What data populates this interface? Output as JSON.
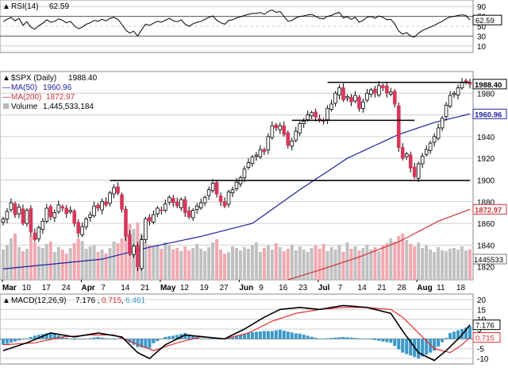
{
  "chart_data": {
    "type": "candlestick",
    "symbol_label": "$SPX (Daily)",
    "last_close": 1988.4,
    "last_close_label": "1988.40",
    "x_tick_labels": [
      "Mar",
      "10",
      "17",
      "24",
      "Apr",
      "7",
      "14",
      "21",
      "May",
      "12",
      "19",
      "27",
      "Jun",
      "9",
      "16",
      "23",
      "Jul",
      "7",
      "14",
      "21",
      "28",
      "Aug",
      "11",
      "18"
    ],
    "x_month_labels": [
      "Mar",
      "Apr",
      "May",
      "Jun",
      "Jul",
      "Aug"
    ],
    "price": {
      "ylim": [
        1808,
        2000
      ],
      "yticks": [
        1820,
        1840,
        1860,
        1880,
        1900,
        1920,
        1940,
        1960,
        1980
      ],
      "horizontal_lines": [
        {
          "value": 1899.5,
          "from_index": 27,
          "to_index": 118
        },
        {
          "value": 1955.0,
          "from_index": 73,
          "to_index": 104
        },
        {
          "value": 1990.0,
          "from_index": 82,
          "to_index": 118
        }
      ],
      "closes": [
        1864,
        1871,
        1879,
        1868,
        1875,
        1860,
        1872,
        1852,
        1845,
        1856,
        1862,
        1874,
        1866,
        1870,
        1877,
        1874,
        1869,
        1872,
        1860,
        1851,
        1857,
        1864,
        1868,
        1876,
        1874,
        1880,
        1877,
        1888,
        1893,
        1888,
        1873,
        1848,
        1832,
        1839,
        1820,
        1845,
        1864,
        1862,
        1868,
        1874,
        1872,
        1878,
        1884,
        1879,
        1876,
        1882,
        1870,
        1866,
        1872,
        1876,
        1879,
        1884,
        1891,
        1897,
        1887,
        1880,
        1876,
        1889,
        1891,
        1898,
        1902,
        1910,
        1916,
        1921,
        1923,
        1928,
        1926,
        1940,
        1950,
        1948,
        1950,
        1942,
        1932,
        1936,
        1945,
        1952,
        1954,
        1960,
        1962,
        1958,
        1955,
        1954,
        1966,
        1970,
        1980,
        1985,
        1974,
        1977,
        1972,
        1978,
        1966,
        1972,
        1980,
        1983,
        1980,
        1987,
        1985,
        1980,
        1981,
        1970,
        1930,
        1920,
        1924,
        1911,
        1903,
        1915,
        1922,
        1928,
        1934,
        1940,
        1948,
        1957,
        1969,
        1978,
        1980,
        1985,
        1990,
        1991,
        1988.4
      ],
      "ma50": {
        "name": "MA(50)",
        "last_label": "1960.96",
        "color": "#1f1fa0",
        "last_value": 1960.96,
        "anchors": [
          [
            0,
            1818
          ],
          [
            25,
            1827
          ],
          [
            37,
            1838
          ],
          [
            50,
            1848
          ],
          [
            63,
            1860
          ],
          [
            75,
            1891
          ],
          [
            87,
            1920
          ],
          [
            100,
            1942
          ],
          [
            109,
            1953
          ],
          [
            118,
            1960.96
          ]
        ]
      },
      "ma200": {
        "name": "MA(200)",
        "last_label": "1872.97",
        "color": "#c8333b",
        "last_value": 1872.97,
        "anchors": [
          [
            72,
            1808
          ],
          [
            80,
            1817
          ],
          [
            90,
            1829
          ],
          [
            100,
            1843
          ],
          [
            110,
            1862
          ],
          [
            118,
            1872.97
          ]
        ]
      }
    },
    "volume": {
      "name": "Volume",
      "last_label": "1,445,533,184",
      "axis_label": "1445533",
      "last_value": 1445533184,
      "values": [
        38,
        44,
        52,
        58,
        41,
        36,
        39,
        55,
        47,
        42,
        40,
        45,
        48,
        35,
        41,
        38,
        33,
        40,
        46,
        52,
        49,
        39,
        42,
        44,
        35,
        38,
        33,
        40,
        48,
        46,
        52,
        60,
        70,
        64,
        72,
        58,
        48,
        44,
        41,
        43,
        39,
        47,
        44,
        38,
        40,
        36,
        42,
        37,
        40,
        45,
        39,
        36,
        41,
        47,
        51,
        38,
        33,
        35,
        42,
        40,
        37,
        41,
        39,
        44,
        47,
        35,
        40,
        43,
        38,
        46,
        41,
        36,
        39,
        44,
        37,
        42,
        38,
        35,
        40,
        43,
        39,
        45,
        36,
        41,
        38,
        44,
        35,
        47,
        39,
        42,
        37,
        40,
        44,
        38,
        41,
        36,
        43,
        46,
        52,
        48,
        55,
        58,
        50,
        45,
        42,
        47,
        40,
        43,
        38,
        35,
        41,
        37,
        36,
        39,
        40,
        38,
        42,
        37,
        38.3
      ],
      "yticks": [
        1820
      ]
    },
    "rsi": {
      "name": "RSI(14)",
      "last_label": "62.59",
      "last_value": 62.59,
      "ylim": [
        0,
        100
      ],
      "yticks": [
        10,
        30,
        50,
        70,
        90
      ],
      "ref_lines": [
        30,
        70
      ],
      "values": [
        60,
        64,
        68,
        61,
        66,
        52,
        59,
        48,
        44,
        51,
        56,
        63,
        58,
        60,
        65,
        62,
        57,
        60,
        51,
        45,
        48,
        54,
        57,
        62,
        60,
        64,
        61,
        66,
        68,
        64,
        54,
        42,
        36,
        40,
        30,
        43,
        54,
        52,
        56,
        60,
        58,
        62,
        66,
        61,
        59,
        63,
        54,
        50,
        55,
        58,
        60,
        64,
        68,
        71,
        62,
        57,
        54,
        62,
        63,
        67,
        69,
        72,
        74,
        76,
        76,
        78,
        74,
        80,
        83,
        78,
        80,
        70,
        60,
        62,
        67,
        70,
        71,
        73,
        74,
        70,
        66,
        65,
        70,
        72,
        76,
        78,
        67,
        69,
        64,
        68,
        58,
        62,
        68,
        70,
        66,
        71,
        68,
        63,
        64,
        55,
        40,
        34,
        37,
        30,
        28,
        36,
        41,
        45,
        48,
        52,
        56,
        60,
        65,
        69,
        70,
        72,
        73,
        72,
        62.59
      ]
    },
    "macd": {
      "name": "MACD(12,26,9)",
      "macd_label": "7.176",
      "signal_label": "0.715",
      "hist_label": "6.461",
      "macd_value": 7.176,
      "signal_value": 0.715,
      "hist_value": 6.461,
      "ylim": [
        -12,
        22
      ],
      "yticks": [
        -10,
        -5,
        0,
        5,
        10,
        15,
        20
      ],
      "macd_anchors": [
        [
          0,
          -6
        ],
        [
          6,
          -2
        ],
        [
          12,
          3
        ],
        [
          18,
          1
        ],
        [
          24,
          3
        ],
        [
          30,
          1
        ],
        [
          34,
          -7
        ],
        [
          37,
          -10
        ],
        [
          41,
          -3
        ],
        [
          46,
          2
        ],
        [
          51,
          1
        ],
        [
          56,
          0
        ],
        [
          61,
          5
        ],
        [
          66,
          11
        ],
        [
          70,
          15
        ],
        [
          75,
          16
        ],
        [
          80,
          15
        ],
        [
          86,
          17
        ],
        [
          92,
          16
        ],
        [
          98,
          13
        ],
        [
          101,
          4
        ],
        [
          105,
          -7
        ],
        [
          109,
          -11
        ],
        [
          112,
          -6
        ],
        [
          116,
          2
        ],
        [
          118,
          7.176
        ]
      ],
      "signal_anchors": [
        [
          0,
          -3
        ],
        [
          8,
          -2
        ],
        [
          15,
          1
        ],
        [
          22,
          2
        ],
        [
          28,
          2
        ],
        [
          33,
          -2
        ],
        [
          38,
          -6
        ],
        [
          44,
          -2
        ],
        [
          50,
          1
        ],
        [
          56,
          0
        ],
        [
          62,
          3
        ],
        [
          68,
          9
        ],
        [
          74,
          13
        ],
        [
          80,
          15
        ],
        [
          86,
          16
        ],
        [
          92,
          16
        ],
        [
          98,
          15
        ],
        [
          101,
          11
        ],
        [
          105,
          3
        ],
        [
          109,
          -5
        ],
        [
          113,
          -7
        ],
        [
          116,
          -3
        ],
        [
          118,
          0.715
        ]
      ]
    },
    "colors": {
      "up": "#ffffff",
      "down": "#d8365a",
      "outline": "#000000",
      "vol_up": "#c0c0c0",
      "vol_down": "#f2a8b0",
      "macd_line": "#000000",
      "signal_line": "#e03030",
      "histogram": "#3a98c8",
      "grid": "#cfcfcf",
      "ma50": "#1f1fa0",
      "ma200": "#c8333b"
    }
  }
}
